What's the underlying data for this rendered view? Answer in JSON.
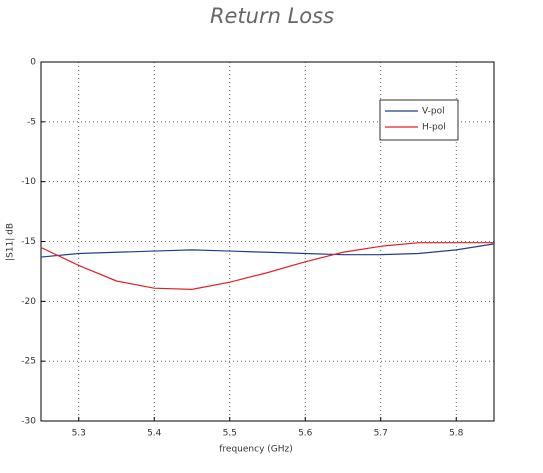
{
  "chart_data": {
    "type": "line",
    "title": "Return Loss",
    "xlabel": "frequency (GHz)",
    "ylabel": "|S11| dB",
    "x": [
      5.25,
      5.3,
      5.35,
      5.4,
      5.45,
      5.5,
      5.55,
      5.6,
      5.65,
      5.7,
      5.75,
      5.8,
      5.85
    ],
    "series": [
      {
        "name": "V-pol",
        "color": "#1f3f8f",
        "values": [
          -16.3,
          -16.0,
          -15.9,
          -15.8,
          -15.7,
          -15.8,
          -15.9,
          -16.0,
          -16.1,
          -16.1,
          -16.0,
          -15.7,
          -15.2
        ]
      },
      {
        "name": "H-pol",
        "color": "#e0202a",
        "values": [
          -15.5,
          -17.0,
          -18.3,
          -18.9,
          -19.0,
          -18.4,
          -17.6,
          -16.7,
          -15.9,
          -15.4,
          -15.1,
          -15.1,
          -15.1
        ]
      }
    ],
    "xlim": [
      5.25,
      5.85
    ],
    "xticks": [
      5.3,
      5.4,
      5.5,
      5.6,
      5.7,
      5.8
    ],
    "ylim": [
      -30,
      0
    ],
    "yticks": [
      -30,
      -25,
      -20,
      -15,
      -10,
      -5,
      0
    ],
    "grid": true,
    "legend": "upper right"
  }
}
